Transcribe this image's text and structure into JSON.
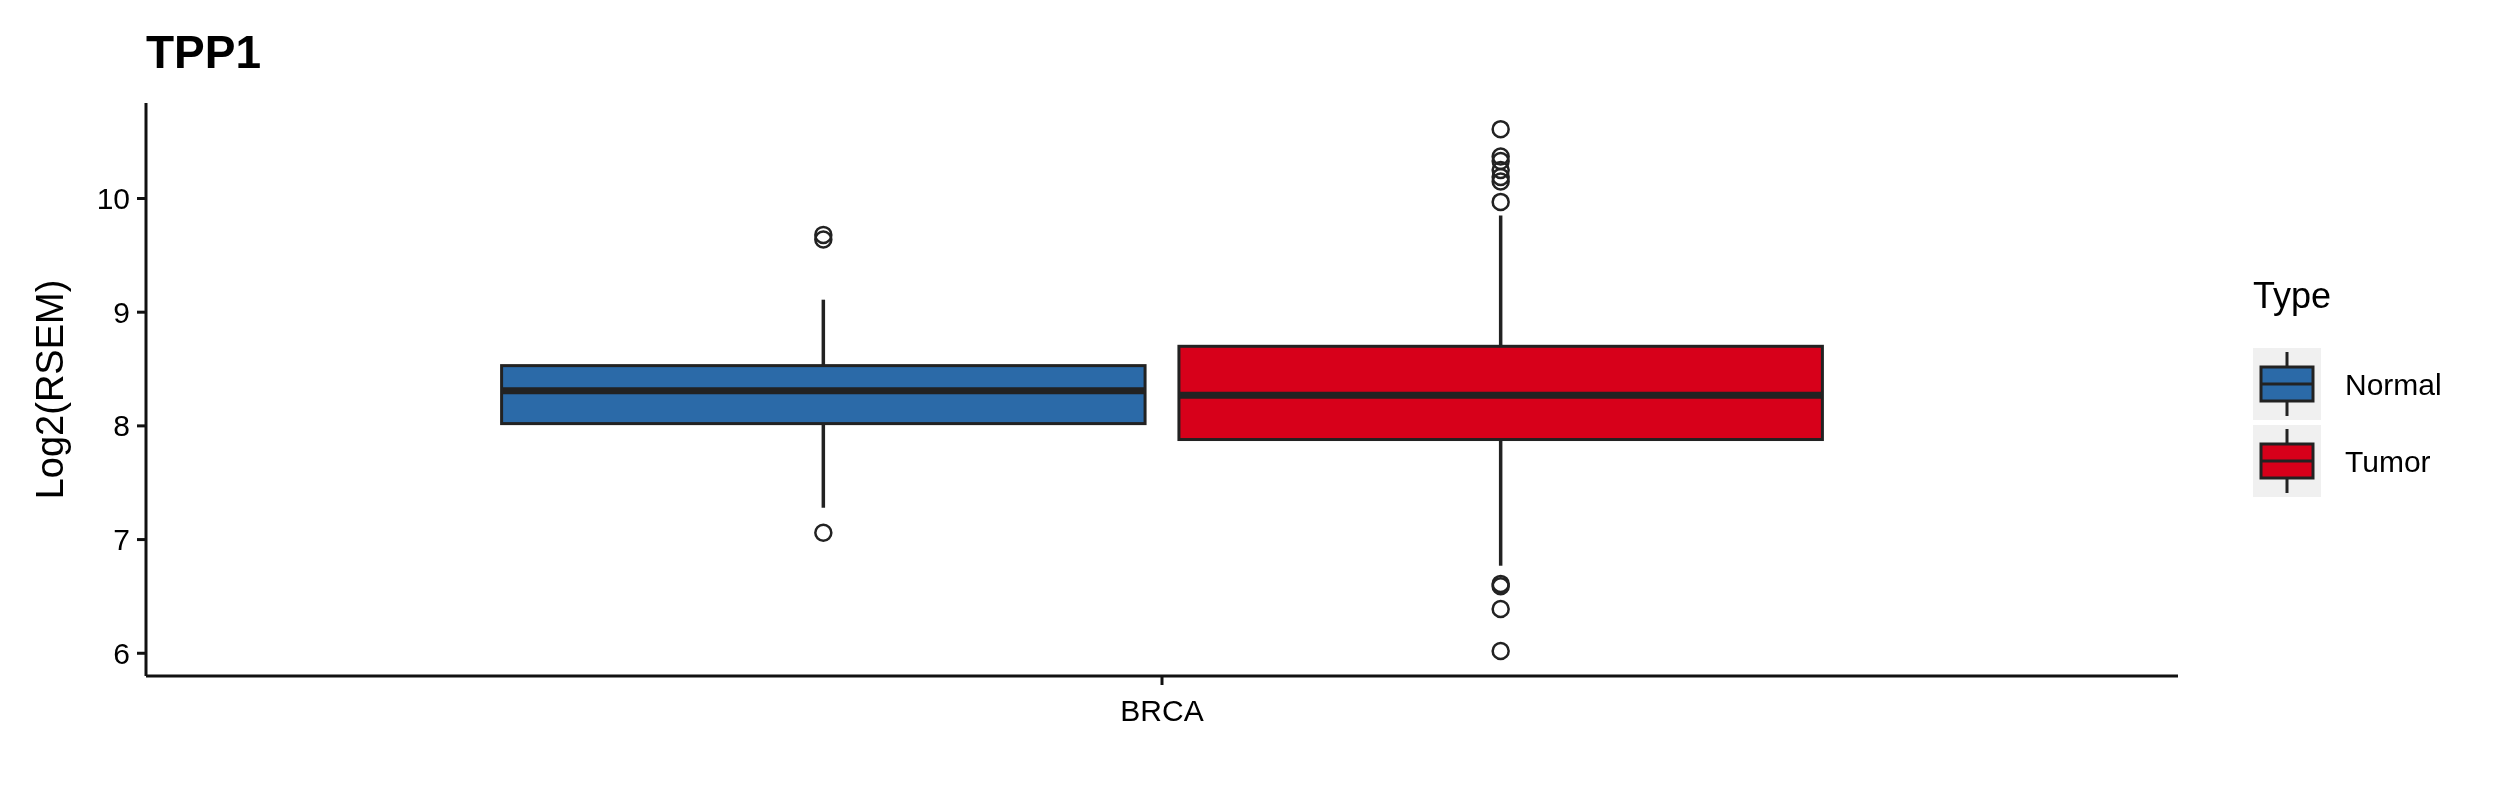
{
  "chart_data": {
    "type": "box",
    "title": "TPP1",
    "ylabel": "Log2(RSEM)",
    "legend_title": "Type",
    "legend": "right",
    "categories": [
      "BRCA"
    ],
    "ylim": [
      5.8,
      10.84
    ],
    "yticks": [
      6,
      7,
      8,
      9,
      10
    ],
    "grid": false,
    "series": [
      {
        "name": "Normal",
        "color": "#2b6aa8",
        "boxes": [
          {
            "low": 7.28,
            "q1": 8.02,
            "median": 8.31,
            "q3": 8.53,
            "high": 9.11,
            "outliers": [
              9.68,
              9.64,
              7.06
            ]
          }
        ]
      },
      {
        "name": "Tumor",
        "color": "#d7001a",
        "boxes": [
          {
            "low": 6.77,
            "q1": 7.88,
            "median": 8.27,
            "q3": 8.7,
            "high": 9.85,
            "outliers": [
              10.61,
              10.37,
              10.33,
              10.25,
              10.19,
              10.15,
              9.97,
              6.61,
              6.59,
              6.39,
              6.02
            ]
          }
        ]
      }
    ]
  }
}
